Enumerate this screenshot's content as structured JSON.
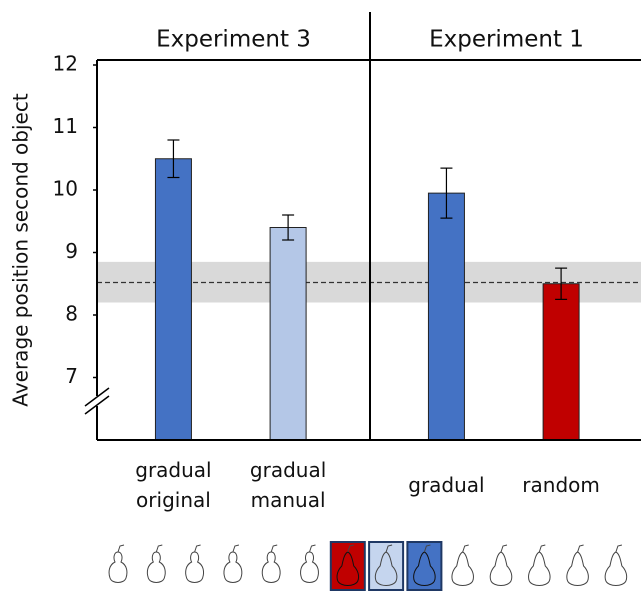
{
  "chart_data": {
    "type": "bar",
    "ylabel": "Average position second object",
    "ylim": [
      6,
      12
    ],
    "yticks": [
      7,
      8,
      9,
      10,
      11,
      12
    ],
    "chance_level": 8.52,
    "chance_band": [
      8.2,
      8.85
    ],
    "panels": [
      {
        "title": "Experiment 3",
        "categories": [
          "gradual original",
          "gradual manual"
        ],
        "values": [
          10.5,
          9.4
        ],
        "errors": [
          0.3,
          0.2
        ],
        "colors": [
          "#4472c4",
          "#b4c7e7"
        ]
      },
      {
        "title": "Experiment 1",
        "categories": [
          "gradual",
          "random"
        ],
        "values": [
          9.95,
          8.5
        ],
        "errors": [
          0.4,
          0.25
        ],
        "colors": [
          "#4472c4",
          "#c00000"
        ]
      }
    ]
  }
}
